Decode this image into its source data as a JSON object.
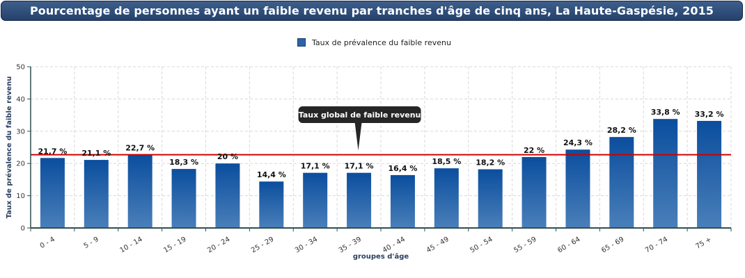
{
  "title": "Pourcentage de personnes ayant un faible revenu par tranches d'âge de cinq ans, La Haute-Gaspésie, 2015",
  "legend": {
    "label": "Taux de prévalence du faible revenu"
  },
  "colors": {
    "bar_top": "#0b4e9e",
    "bar_bottom": "#4a7fb9",
    "reference_line": "#cc0000",
    "axis": "#2f4f4f",
    "title_bg": "#2e4d7a"
  },
  "chart_data": {
    "type": "bar",
    "title": "Pourcentage de personnes ayant un faible revenu par tranches d'âge de cinq ans, La Haute-Gaspésie, 2015",
    "xlabel": "groupes d'âge",
    "ylabel": "Taux de prévalence du faible revenu",
    "ylim": [
      0,
      50
    ],
    "yticks": [
      0,
      10,
      20,
      30,
      40,
      50
    ],
    "grid": true,
    "legend_position": "top-center",
    "categories": [
      "0 - 4",
      "5 - 9",
      "10 - 14",
      "15 - 19",
      "20 - 24",
      "25 - 29",
      "30 - 34",
      "35 - 39",
      "40 - 44",
      "45 - 49",
      "50 - 54",
      "55 - 59",
      "60 - 64",
      "65 - 69",
      "70 - 74",
      "75 +"
    ],
    "series": [
      {
        "name": "Taux de prévalence du faible revenu",
        "values": [
          21.7,
          21.1,
          22.7,
          18.3,
          20,
          14.4,
          17.1,
          17.1,
          16.4,
          18.5,
          18.2,
          22,
          24.3,
          28.2,
          33.8,
          33.2
        ],
        "labels": [
          "21,7 %",
          "21,1 %",
          "22,7 %",
          "18,3 %",
          "20 %",
          "14,4 %",
          "17,1 %",
          "17,1 %",
          "16,4 %",
          "18,5 %",
          "18,2 %",
          "22 %",
          "24,3 %",
          "28,2 %",
          "33,8 %",
          "33,2 %"
        ]
      }
    ],
    "reference_line": {
      "value": 22.7,
      "label": "Taux global de faible revenu",
      "at_category": "35 - 39"
    }
  }
}
